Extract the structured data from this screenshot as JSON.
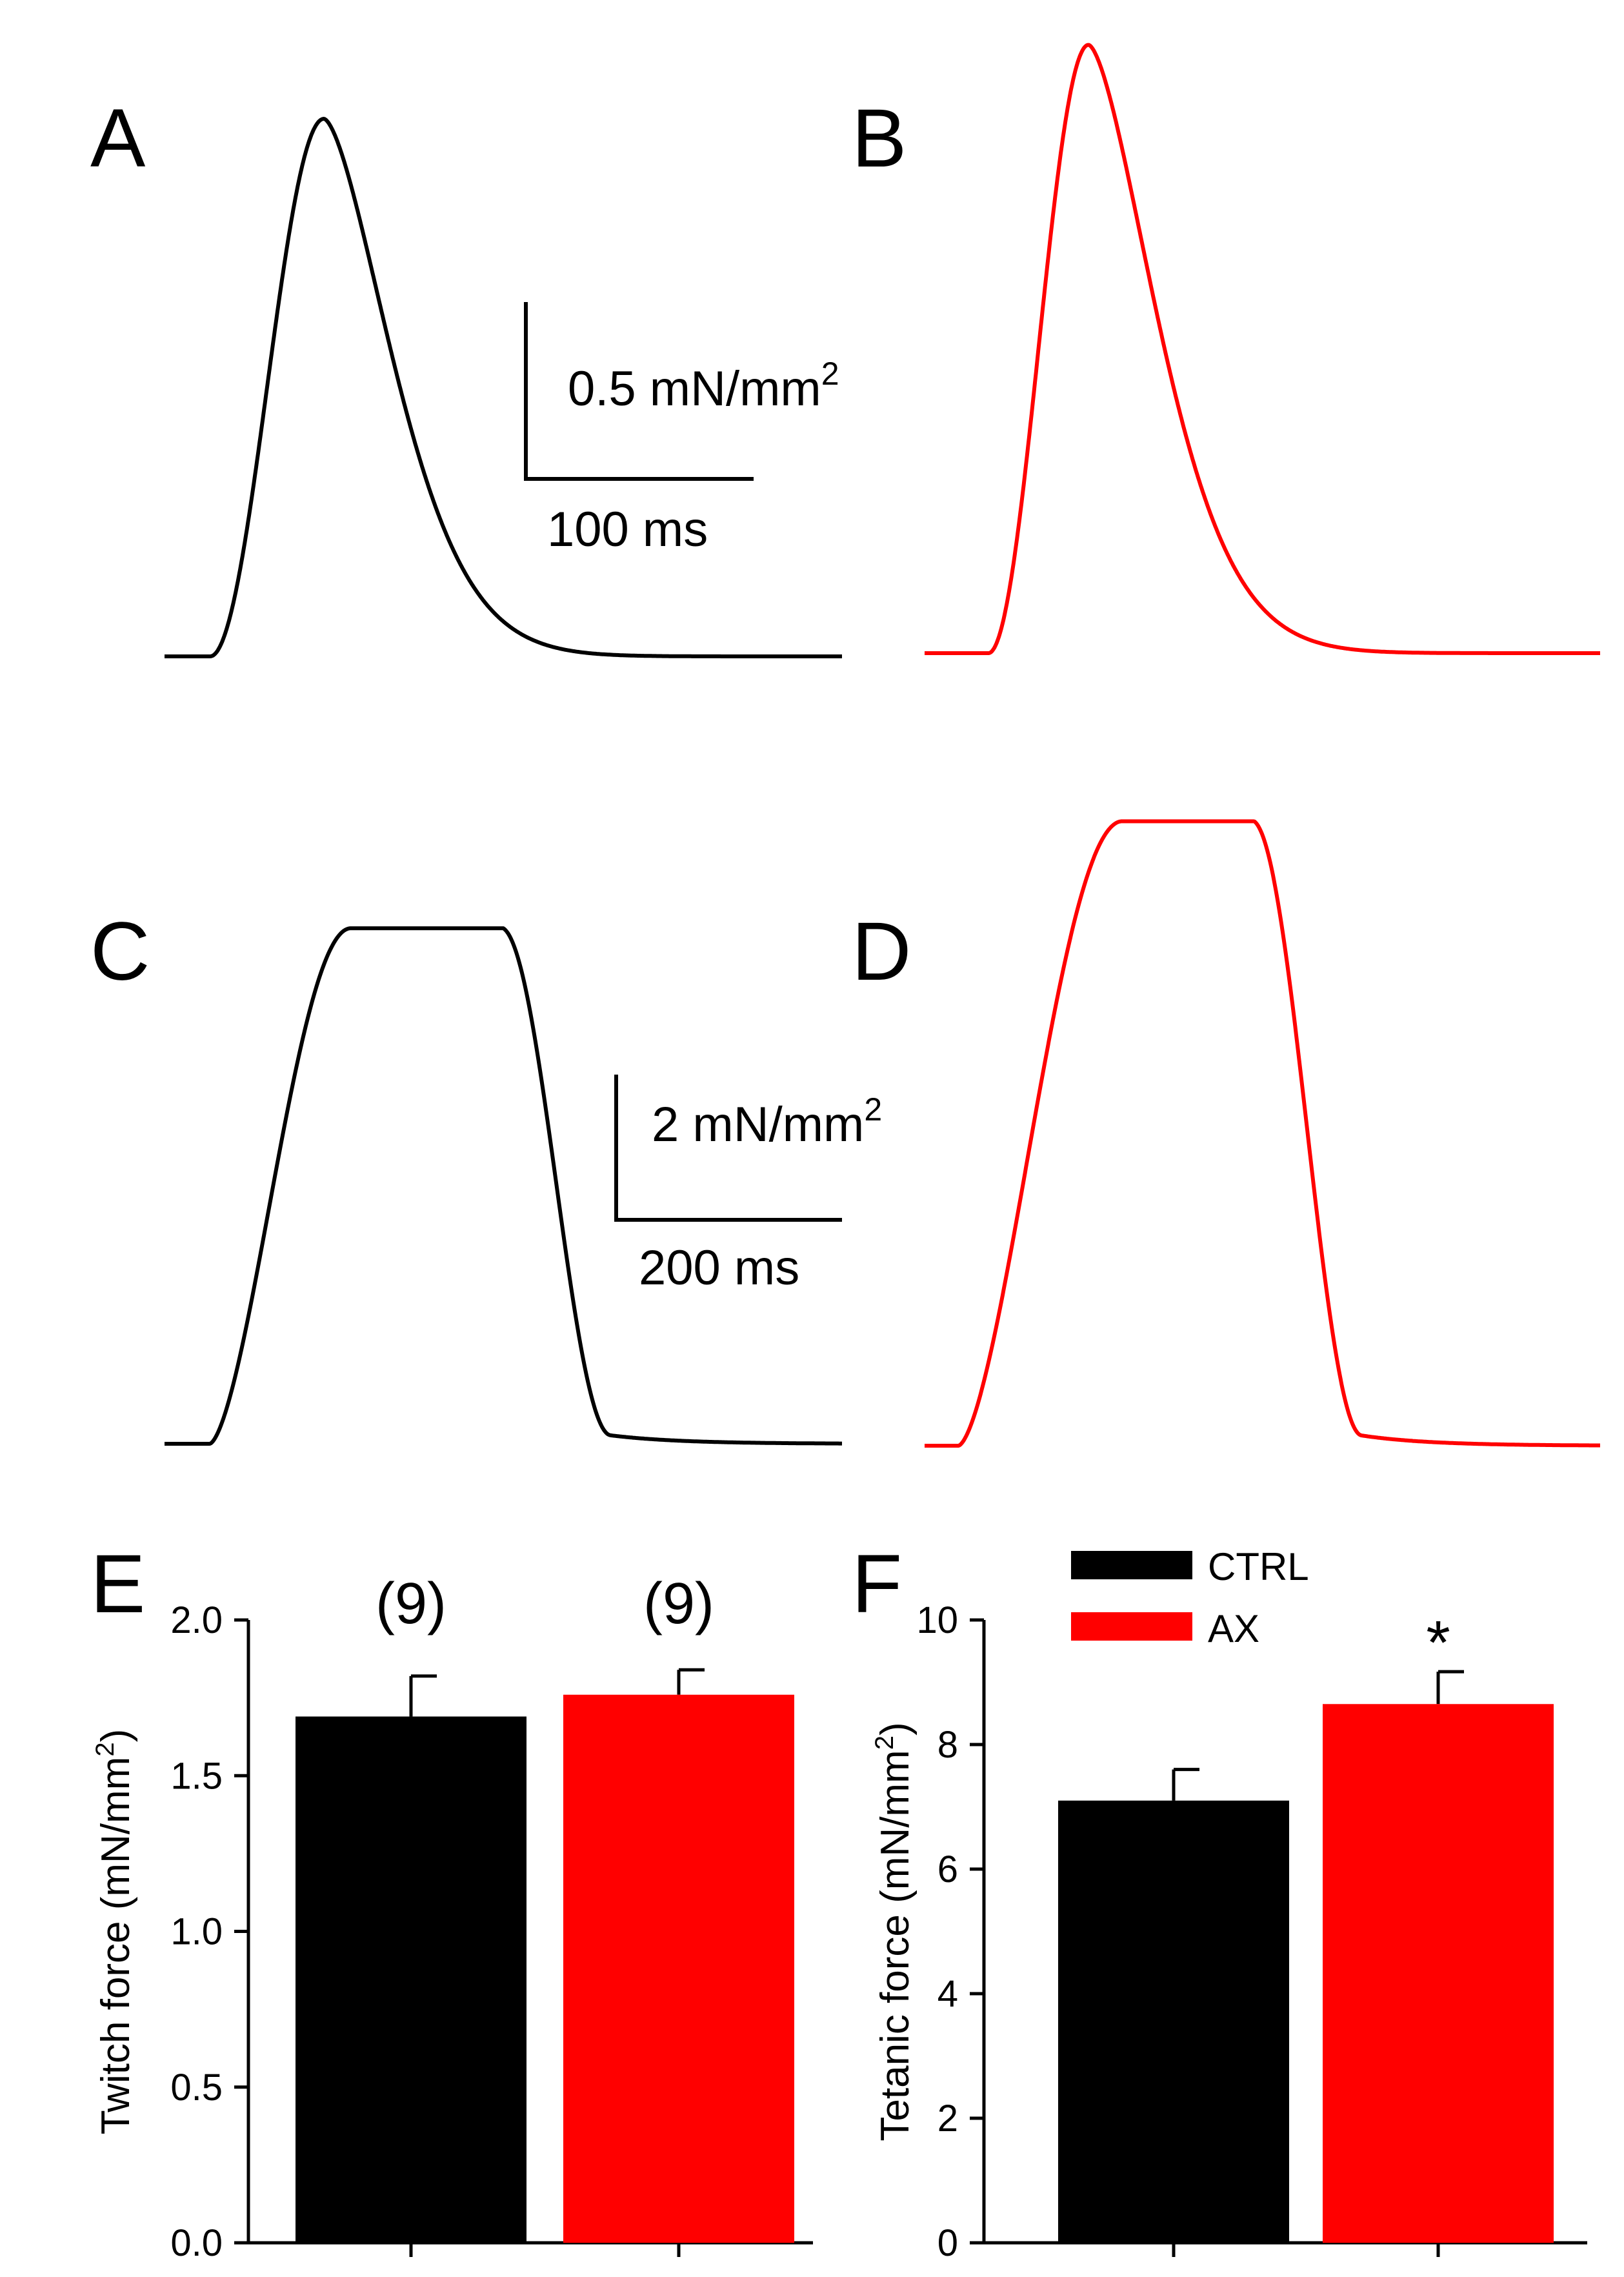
{
  "panels": {
    "A": {
      "letter": "A",
      "trace": {
        "color": "#000000",
        "shape": "twitch",
        "amplitude": 1.52,
        "onset_ms": 20,
        "peak_ms": 70
      },
      "scalebar": {
        "y_value": 0.5,
        "y_label": "0.5 mN/mm",
        "y_sup": "2",
        "x_value": 100,
        "x_label": "100 ms"
      }
    },
    "B": {
      "letter": "B",
      "trace": {
        "color": "#ff0000",
        "shape": "twitch",
        "amplitude": 1.72,
        "onset_ms": 28,
        "peak_ms": 72
      }
    },
    "C": {
      "letter": "C",
      "trace": {
        "color": "#000000",
        "shape": "tetanus",
        "amplitude": 7.1
      },
      "scalebar": {
        "y_value": 2,
        "y_label": "2 mN/mm",
        "y_sup": "2",
        "x_value": 200,
        "x_label": "200 ms"
      }
    },
    "D": {
      "letter": "D",
      "trace": {
        "color": "#ff0000",
        "shape": "tetanus",
        "amplitude": 8.6
      }
    }
  },
  "chart_data": [
    {
      "id": "E",
      "type": "bar",
      "letter": "E",
      "categories": [
        "CTRL",
        "AX"
      ],
      "values": [
        1.69,
        1.76
      ],
      "errors": [
        0.13,
        0.08
      ],
      "colors": [
        "#000000",
        "#ff0000"
      ],
      "annotations": [
        "(9)",
        "(9)"
      ],
      "ylabel": "Twitch force (mN/mm",
      "ylabel_sup": "2",
      "ylabel_close": ")",
      "ylim": [
        0,
        2.0
      ],
      "yticks": [
        0.0,
        0.5,
        1.0,
        1.5,
        2.0
      ],
      "ytick_labels": [
        "0.0",
        "0.5",
        "1.0",
        "1.5",
        "2.0"
      ]
    },
    {
      "id": "F",
      "type": "bar",
      "letter": "F",
      "categories": [
        "CTRL",
        "AX"
      ],
      "values": [
        7.1,
        8.65
      ],
      "errors": [
        0.5,
        0.52
      ],
      "colors": [
        "#000000",
        "#ff0000"
      ],
      "annotations": [
        "",
        "*"
      ],
      "legend": [
        {
          "label": "CTRL",
          "color": "#000000"
        },
        {
          "label": "AX",
          "color": "#ff0000"
        }
      ],
      "ylabel": "Tetanic force (mN/mm",
      "ylabel_sup": "2",
      "ylabel_close": ")",
      "ylim": [
        0,
        10
      ],
      "yticks": [
        0,
        2,
        4,
        6,
        8,
        10
      ],
      "ytick_labels": [
        "0",
        "2",
        "4",
        "6",
        "8",
        "10"
      ]
    }
  ]
}
